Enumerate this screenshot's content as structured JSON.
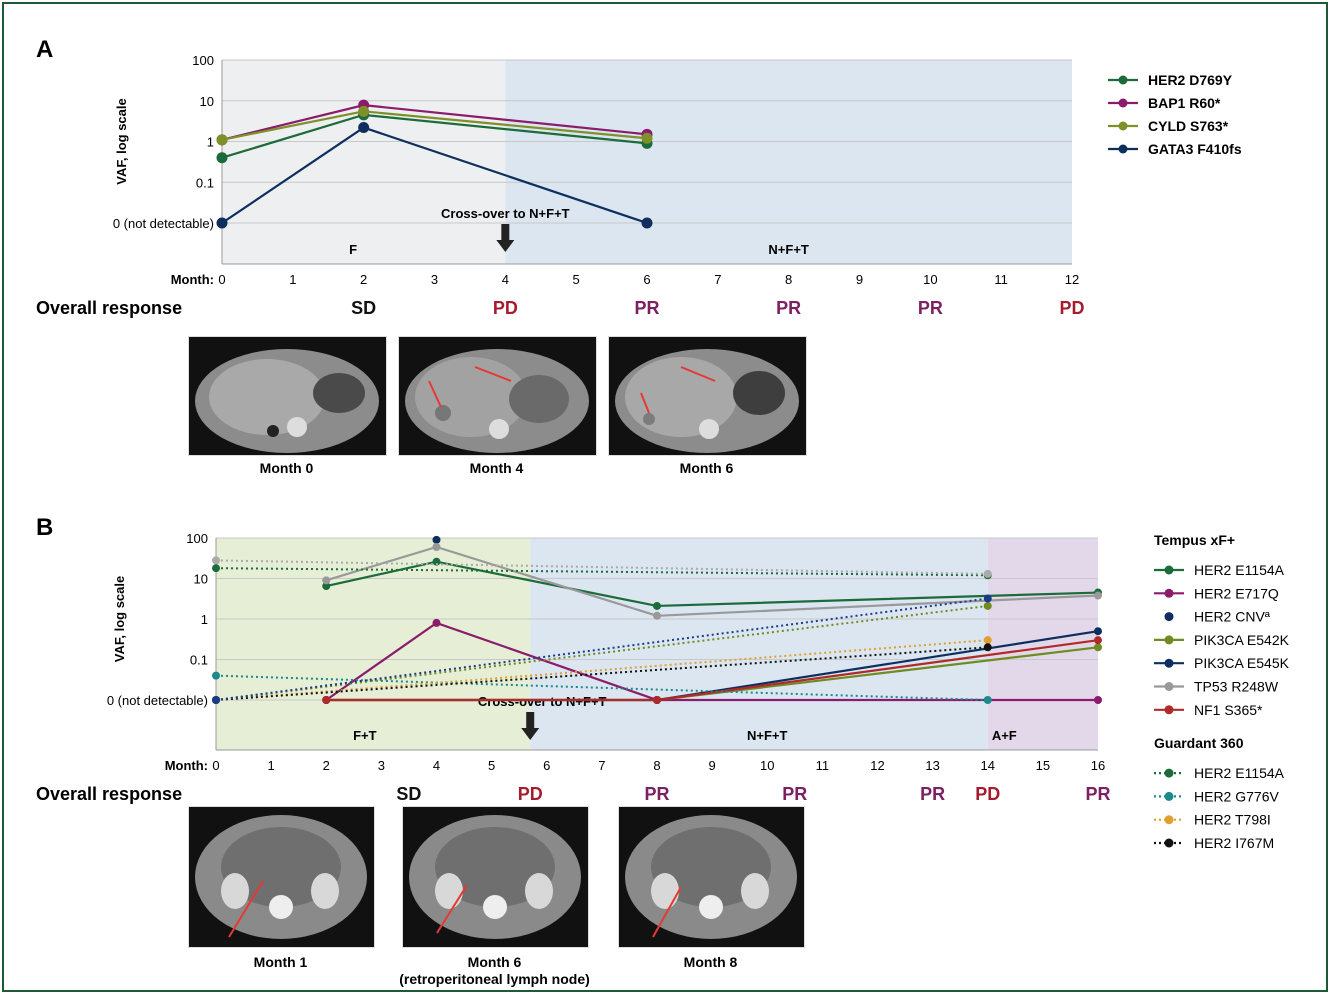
{
  "colors": {
    "gray_region": "#eeeff0",
    "blue_region": "#dbe6f1",
    "green_region": "#e6eed6",
    "purple_region": "#e3d8ea",
    "pd_color": "#a51d2d",
    "pr_color": "#7b2060"
  },
  "panel_a": {
    "letter": "A",
    "ylabel": "VAF, log scale",
    "xlabel": "Month:",
    "ytick_labels": [
      "100",
      "10",
      "1",
      "0.1",
      "0 (not detectable)"
    ],
    "phase_f": "F",
    "phase_nft": "N+F+T",
    "crossover": "Cross-over to N+F+T",
    "response_label": "Overall response",
    "responses": [
      {
        "month": 2,
        "text": "SD",
        "type": "SD"
      },
      {
        "month": 4,
        "text": "PD",
        "type": "PD"
      },
      {
        "month": 6,
        "text": "PR",
        "type": "PR"
      },
      {
        "month": 8,
        "text": "PR",
        "type": "PR"
      },
      {
        "month": 10,
        "text": "PR",
        "type": "PR"
      },
      {
        "month": 12,
        "text": "PD",
        "type": "PD"
      }
    ],
    "scan_labels": [
      "Month 0",
      "Month 4",
      "Month 6"
    ]
  },
  "panel_b": {
    "letter": "B",
    "ylabel": "VAF, log scale",
    "xlabel": "Month:",
    "ytick_labels": [
      "100",
      "10",
      "1",
      "0.1",
      "0 (not detectable)"
    ],
    "phase_ft": "F+T",
    "phase_nft": "N+F+T",
    "phase_af": "A+F",
    "crossover": "Cross-over to N+F+T",
    "response_label": "Overall response",
    "responses": [
      {
        "month": 3.5,
        "text": "SD",
        "type": "SD"
      },
      {
        "month": 5.7,
        "text": "PD",
        "type": "PD"
      },
      {
        "month": 8,
        "text": "PR",
        "type": "PR"
      },
      {
        "month": 10.5,
        "text": "PR",
        "type": "PR"
      },
      {
        "month": 13,
        "text": "PR",
        "type": "PR"
      },
      {
        "month": 14,
        "text": "PD",
        "type": "PD"
      },
      {
        "month": 16,
        "text": "PR",
        "type": "PR"
      }
    ],
    "scan_labels": [
      "Month 1",
      "Month 6\n(retroperitoneal lymph node)",
      "Month 8"
    ],
    "legend_group1": "Tempus xF+",
    "legend_group2": "Guardant 360"
  },
  "chart_data": [
    {
      "type": "line",
      "title": "",
      "xlabel": "Month:",
      "ylabel": "VAF, log scale",
      "yscale": "log",
      "xlim": [
        0,
        12
      ],
      "ylim": [
        "0 (not detectable)",
        100
      ],
      "legend_position": "right",
      "series": [
        {
          "name": "HER2 D769Y",
          "color": "#1c6b3a",
          "style": "solid",
          "x": [
            0,
            2,
            6
          ],
          "y": [
            0.4,
            4.5,
            0.9
          ]
        },
        {
          "name": "BAP1 R60*",
          "color": "#8a1c6b",
          "style": "solid",
          "x": [
            0,
            2,
            6
          ],
          "y": [
            1.1,
            7.8,
            1.5
          ]
        },
        {
          "name": "CYLD S763*",
          "color": "#7f8f2a",
          "style": "solid",
          "x": [
            0,
            2,
            6
          ],
          "y": [
            1.1,
            5.5,
            1.2
          ]
        },
        {
          "name": "GATA3 F410fs",
          "color": "#0e2f5e",
          "style": "solid",
          "x": [
            0,
            2,
            6
          ],
          "y": [
            0,
            2.2,
            0
          ]
        }
      ]
    },
    {
      "type": "line",
      "title": "",
      "xlabel": "Month:",
      "ylabel": "VAF, log scale",
      "yscale": "log",
      "xlim": [
        0,
        16
      ],
      "ylim": [
        "0 (not detectable)",
        100
      ],
      "legend_position": "right",
      "series": [
        {
          "name": "HER2 E1154A",
          "group": "Tempus xF+",
          "color": "#1c6b3a",
          "style": "solid",
          "x": [
            2,
            4,
            8,
            16
          ],
          "y": [
            6.5,
            26,
            2.1,
            4.5
          ]
        },
        {
          "name": "HER2 E717Q",
          "group": "Tempus xF+",
          "color": "#8a1c6b",
          "style": "solid",
          "x": [
            2,
            4,
            8,
            16
          ],
          "y": [
            0,
            0.8,
            0,
            0
          ]
        },
        {
          "name": "HER2 CNVª",
          "group": "Tempus xF+",
          "color": "#0e2f5e",
          "style": "none",
          "x": [
            4
          ],
          "y": [
            90
          ]
        },
        {
          "name": "PIK3CA E542K",
          "group": "Tempus xF+",
          "color": "#6f8b22",
          "style": "solid",
          "x": [
            2,
            8,
            16
          ],
          "y": [
            0,
            0,
            0.2
          ]
        },
        {
          "name": "PIK3CA E545K",
          "group": "Tempus xF+",
          "color": "#0e2f5e",
          "style": "solid",
          "x": [
            2,
            8,
            16
          ],
          "y": [
            0,
            0,
            0.5
          ]
        },
        {
          "name": "TP53 R248W",
          "group": "Tempus xF+",
          "color": "#999999",
          "style": "solid",
          "x": [
            2,
            4,
            8,
            16
          ],
          "y": [
            9,
            60,
            1.2,
            3.8
          ]
        },
        {
          "name": "NF1 S365*",
          "group": "Tempus xF+",
          "color": "#b02a2a",
          "style": "solid",
          "x": [
            2,
            8,
            16
          ],
          "y": [
            0,
            0,
            0.3
          ]
        },
        {
          "name": "HER2 E1154A",
          "group": "Guardant 360",
          "color": "#1c6b3a",
          "style": "dotted",
          "x": [
            0,
            14
          ],
          "y": [
            18,
            12
          ]
        },
        {
          "name": "HER2 G776V",
          "group": "Guardant 360",
          "color": "#1a8a8a",
          "style": "dotted",
          "x": [
            0,
            14
          ],
          "y": [
            0.04,
            0
          ]
        },
        {
          "name": "HER2 T798I",
          "group": "Guardant 360",
          "color": "#e0a030",
          "style": "dotted",
          "x": [
            0,
            14
          ],
          "y": [
            0,
            0.3
          ]
        },
        {
          "name": "HER2 I767M",
          "group": "Guardant 360",
          "color": "#111111",
          "style": "dotted",
          "x": [
            0,
            14
          ],
          "y": [
            0,
            0.2
          ]
        },
        {
          "name": "PIK3CA E542K",
          "group": "Guardant 360",
          "color": "#6f8b22",
          "style": "dotted",
          "x": [
            0,
            14
          ],
          "y": [
            0,
            2.1
          ]
        },
        {
          "name": "PIK3CA E545K",
          "group": "Guardant 360",
          "color": "#1c3a8a",
          "style": "dotted",
          "x": [
            0,
            14
          ],
          "y": [
            0,
            3.2
          ]
        },
        {
          "name": "TP53 R248W",
          "group": "Guardant 360",
          "color": "#aaaaaa",
          "style": "dotted",
          "x": [
            0,
            14
          ],
          "y": [
            28,
            13
          ]
        }
      ]
    }
  ]
}
